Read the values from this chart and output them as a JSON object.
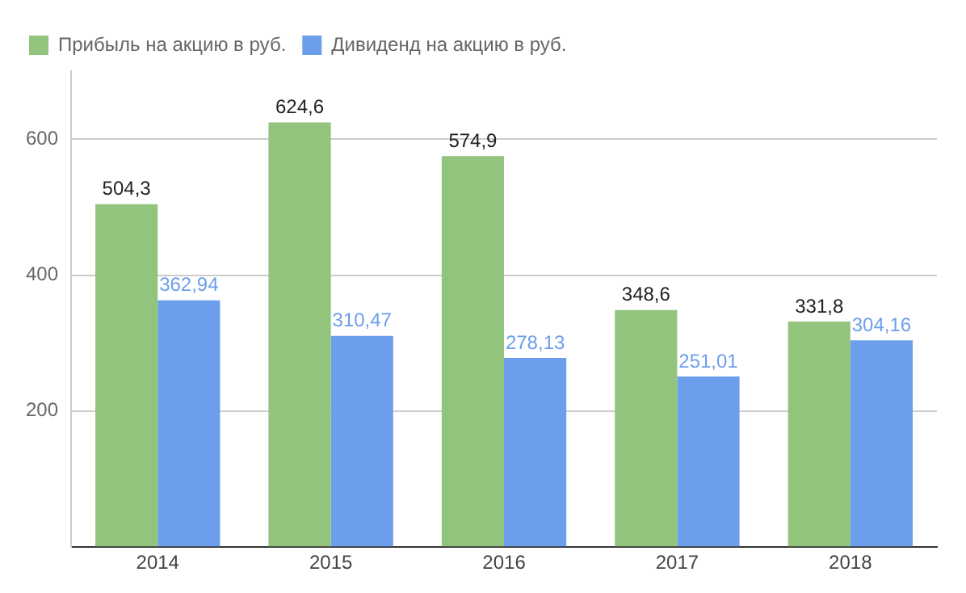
{
  "chart_data": {
    "type": "bar",
    "categories": [
      "2014",
      "2015",
      "2016",
      "2017",
      "2018"
    ],
    "series": [
      {
        "name": "Прибыль на акцию в руб.",
        "color": "#93c47d",
        "values": [
          504.3,
          624.6,
          574.9,
          348.6,
          331.8
        ],
        "value_labels": [
          "504,3",
          "624,6",
          "574,9",
          "348,6",
          "331,8"
        ]
      },
      {
        "name": "Дивиденд на акцию в руб.",
        "color": "#6d9eeb",
        "values": [
          362.94,
          310.47,
          278.13,
          251.01,
          304.16
        ],
        "value_labels": [
          "362,94",
          "310,47",
          "278,13",
          "251,01",
          "304,16"
        ]
      }
    ],
    "ylim": [
      0,
      700
    ],
    "yticks": [
      {
        "value": 0,
        "label": null
      },
      200,
      400,
      600
    ],
    "grid": "y",
    "legend": "top left"
  }
}
